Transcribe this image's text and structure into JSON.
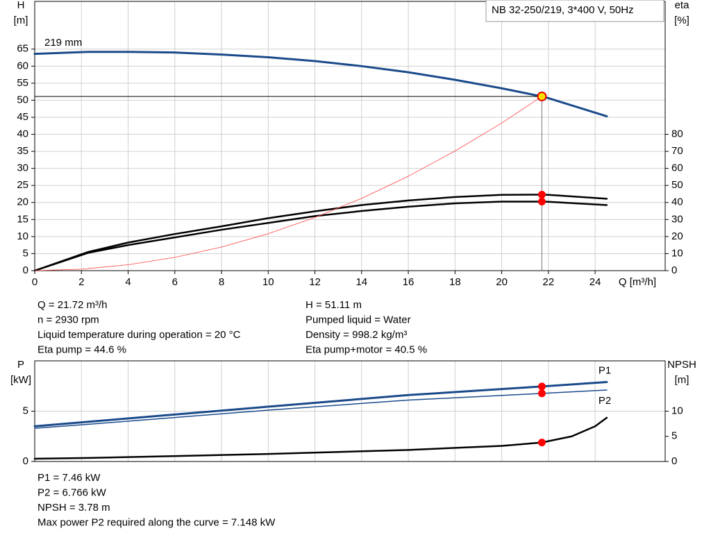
{
  "chart_data": [
    {
      "type": "line",
      "title": "NB 32-250/219, 3*400 V, 50Hz",
      "annotation": "219 mm",
      "xlabel": "Q [m³/h]",
      "ylabel": [
        "H",
        "[m]"
      ],
      "y2label": [
        "eta",
        "[%]"
      ],
      "xlim": [
        0,
        27
      ],
      "xticks": [
        0,
        2,
        4,
        6,
        8,
        10,
        12,
        14,
        16,
        18,
        20,
        22,
        24
      ],
      "ylim": [
        0,
        79
      ],
      "yticks": [
        0,
        5,
        10,
        15,
        20,
        25,
        30,
        35,
        40,
        45,
        50,
        55,
        60,
        65
      ],
      "y2lim": [
        0,
        158
      ],
      "y2ticks": [
        0,
        10,
        20,
        30,
        40,
        50,
        60,
        70,
        80
      ],
      "grid": true,
      "series": [
        {
          "color": "#1a4a8a",
          "line_width": 3,
          "x": [
            0,
            2.3,
            4,
            6,
            8,
            10,
            12,
            14,
            16,
            18,
            20,
            21.72,
            22,
            24.5
          ],
          "values": [
            63.6,
            64.2,
            64.2,
            64.0,
            63.4,
            62.6,
            61.5,
            60.0,
            58.2,
            56.0,
            53.5,
            51.11,
            50.6,
            45.3
          ]
        },
        {
          "color": "#000000",
          "line_width": 2.5,
          "axis": "y2",
          "x": [
            0,
            2.3,
            4,
            6,
            8,
            10,
            12,
            14,
            16,
            18,
            20,
            21.72,
            22,
            24.5
          ],
          "values": [
            0,
            11,
            16.5,
            21.5,
            26,
            30.8,
            34.8,
            38.5,
            41.2,
            43.2,
            44.5,
            44.6,
            44.5,
            42.2
          ]
        },
        {
          "color": "#000000",
          "line_width": 2.5,
          "axis": "y2",
          "x": [
            0,
            2.3,
            4,
            6,
            8,
            10,
            12,
            14,
            16,
            18,
            20,
            21.72,
            22,
            24.5
          ],
          "values": [
            0,
            10.5,
            15,
            19.5,
            24,
            28,
            32,
            35,
            37.5,
            39.5,
            40.5,
            40.5,
            40.4,
            38.5
          ]
        },
        {
          "color": "#ff4040",
          "line_width": 0.8,
          "x": [
            0,
            2,
            4,
            6,
            8,
            10,
            12,
            14,
            16,
            18,
            20,
            21.72
          ],
          "values": [
            0,
            0.43,
            1.73,
            3.9,
            6.93,
            10.83,
            15.6,
            21.2,
            27.7,
            35.1,
            43.3,
            51.11
          ]
        }
      ],
      "markers": [
        {
          "x": 21.72,
          "y": 51.11,
          "color": "#ffe000"
        },
        {
          "x": 21.72,
          "y": 44.6,
          "axis": "y2",
          "color": "#ff0000"
        },
        {
          "x": 21.72,
          "y": 40.5,
          "axis": "y2",
          "color": "#ff0000"
        }
      ]
    },
    {
      "type": "line",
      "ylabel": [
        "P",
        "[kW]"
      ],
      "y2label": [
        "NPSH",
        "[m]"
      ],
      "xlim": [
        0,
        27
      ],
      "ylim": [
        0,
        10
      ],
      "yticks": [
        0,
        5
      ],
      "y2lim": [
        0,
        20
      ],
      "y2ticks": [
        0,
        5,
        10
      ],
      "grid": true,
      "series": [
        {
          "name": "P1",
          "color": "#1a4a8a",
          "line_width": 3,
          "x": [
            0,
            2.3,
            10,
            16,
            21.72,
            24.5
          ],
          "values": [
            3.5,
            3.95,
            5.45,
            6.6,
            7.46,
            7.9
          ]
        },
        {
          "name": "P2",
          "color": "#1a4a8a",
          "line_width": 1.5,
          "x": [
            0,
            2.3,
            10,
            16,
            21.72,
            24.5
          ],
          "values": [
            3.3,
            3.7,
            5.1,
            6.1,
            6.766,
            7.1
          ]
        },
        {
          "color": "#000000",
          "line_width": 2.5,
          "axis": "y2",
          "x": [
            0,
            2.3,
            10,
            16,
            20,
            21.72,
            23,
            24,
            24.5
          ],
          "values": [
            0.55,
            0.7,
            1.5,
            2.3,
            3.1,
            3.78,
            5,
            7,
            8.7
          ]
        }
      ],
      "markers": [
        {
          "x": 21.72,
          "y": 7.46,
          "color": "#ff0000"
        },
        {
          "x": 21.72,
          "y": 6.766,
          "color": "#ff0000"
        },
        {
          "x": 21.72,
          "y": 3.78,
          "axis": "y2",
          "color": "#ff0000"
        }
      ]
    }
  ],
  "info_top": {
    "left": [
      "Q = 21.72 m³/h",
      "n = 2930 rpm",
      "Liquid temperature during operation = 20 °C",
      "Eta pump = 44.6 %"
    ],
    "right": [
      "H = 51.11 m",
      "Pumped liquid = Water",
      "Density = 998.2 kg/m³",
      "Eta pump+motor = 40.5 %"
    ]
  },
  "info_bottom": [
    "P1 = 7.46 kW",
    "P2 = 6.766 kW",
    "NPSH = 3.78 m",
    "Max power P2 required along the curve = 7.148 kW"
  ]
}
